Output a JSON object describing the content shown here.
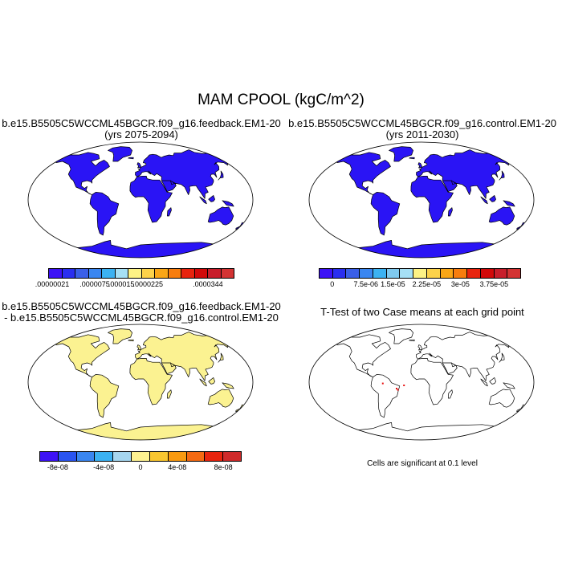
{
  "title": "MAM CPOOL (kgC/m^2)",
  "panels": [
    {
      "line1": "b.e15.B5505C5WCCML45BGCR.f09_g16.feedback.EM1-20",
      "line2": "(yrs 2075-2094)",
      "land_color": "#2a14f5",
      "colorbar": {
        "colors": [
          "#3d12f5",
          "#2a2ef0",
          "#3a5fe8",
          "#3a86f0",
          "#3cb2f2",
          "#a6e0f5",
          "#fdf285",
          "#fcd24a",
          "#f9a616",
          "#f77d0e",
          "#e8240e",
          "#d20a0a",
          "#c81e2b",
          "#d33333"
        ],
        "labels": [
          ".00000021",
          ".0000075",
          ".000015",
          ".0000225",
          ".0000344"
        ]
      }
    },
    {
      "line1": "b.e15.B5505C5WCCML45BGCR.f09_g16.control.EM1-20",
      "line2": "(yrs 2011-2030)",
      "land_color": "#2a14f5",
      "colorbar": {
        "colors": [
          "#3d12f5",
          "#2a2ef0",
          "#3a5fe8",
          "#3a86f0",
          "#3cb2f2",
          "#7fc9ee",
          "#a6e0f5",
          "#fdf285",
          "#fcd24a",
          "#f9a616",
          "#f77d0e",
          "#e8240e",
          "#d20a0a",
          "#c81e2b",
          "#d33333"
        ],
        "labels": [
          "0",
          "7.5e-06",
          "1.5e-05",
          "2.25e-05",
          "3e-05",
          "3.75e-05"
        ]
      }
    },
    {
      "line1": "b.e15.B5505C5WCCML45BGCR.f09_g16.feedback.EM1-20",
      "line2": "- b.e15.B5505C5WCCML45BGCR.f09_g16.control.EM1-20",
      "land_color": "#fbf291",
      "colorbar": {
        "colors": [
          "#3d12f5",
          "#2a54f0",
          "#3a86f0",
          "#3cb2f2",
          "#a6d6ef",
          "#fdf291",
          "#f9c630",
          "#f99a10",
          "#f56a12",
          "#e8240e",
          "#cf2a2a"
        ],
        "labels": [
          "-8e-08",
          "-4e-08",
          "0",
          "4e-08",
          "8e-08"
        ]
      }
    },
    {
      "line1": "T-Test of two Case means at each grid point",
      "line2": "",
      "land_color": "#ffffff",
      "note": "Cells are significant at 0.1 level",
      "significant_cell_color": "#e81010"
    }
  ]
}
